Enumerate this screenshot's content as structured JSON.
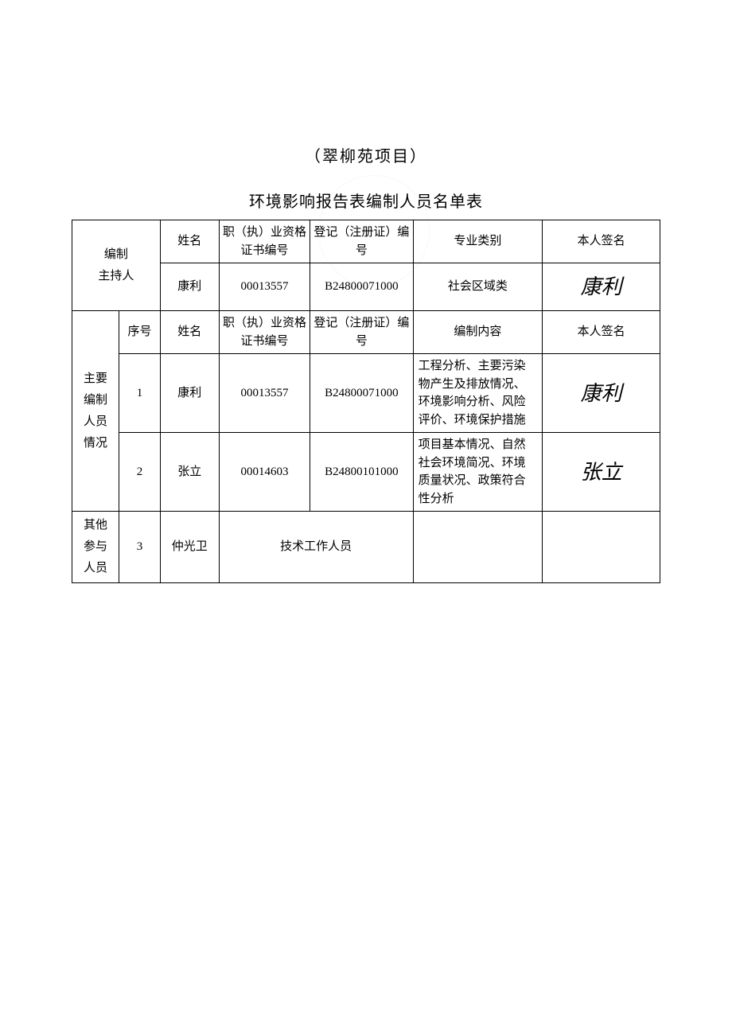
{
  "document": {
    "project_title": "（翠柳苑项目）",
    "table_title": "环境影响报告表编制人员名单表",
    "text_color": "#000000",
    "background_color": "#ffffff",
    "border_color": "#000000"
  },
  "section_presider": {
    "label": "编制\n主持人",
    "header": {
      "name": "姓名",
      "cert_no": "职（执）业资格证书编号",
      "reg_no": "登记（注册证）编号",
      "specialty": "专业类别",
      "signature": "本人签名"
    },
    "row": {
      "name": "康利",
      "cert_no": "00013557",
      "reg_no": "B24800071000",
      "specialty": "社会区域类",
      "signature": "康利"
    }
  },
  "section_main": {
    "label": "主要\n编制\n人员\n情况",
    "header": {
      "seq": "序号",
      "name": "姓名",
      "cert_no": "职（执）业资格证书编号",
      "reg_no": "登记（注册证）编号",
      "content": "编制内容",
      "signature": "本人签名"
    },
    "rows": [
      {
        "seq": "1",
        "name": "康利",
        "cert_no": "00013557",
        "reg_no": "B24800071000",
        "content": "工程分析、主要污染物产生及排放情况、环境影响分析、风险评价、环境保护措施",
        "signature": "康利"
      },
      {
        "seq": "2",
        "name": "张立",
        "cert_no": "00014603",
        "reg_no": "B24800101000",
        "content": "项目基本情况、自然社会环境简况、环境质量状况、政策符合性分析",
        "signature": "张立"
      }
    ]
  },
  "section_other": {
    "label": "其他\n参与\n人员",
    "row": {
      "seq": "3",
      "name": "仲光卫",
      "role": "技术工作人员",
      "content": "",
      "signature": ""
    }
  },
  "table_style": {
    "column_widths_percent": [
      8,
      7,
      10,
      15.5,
      17.5,
      22,
      20
    ],
    "font_size_body": 15,
    "font_size_title": 20,
    "signature_font_size": 26
  }
}
